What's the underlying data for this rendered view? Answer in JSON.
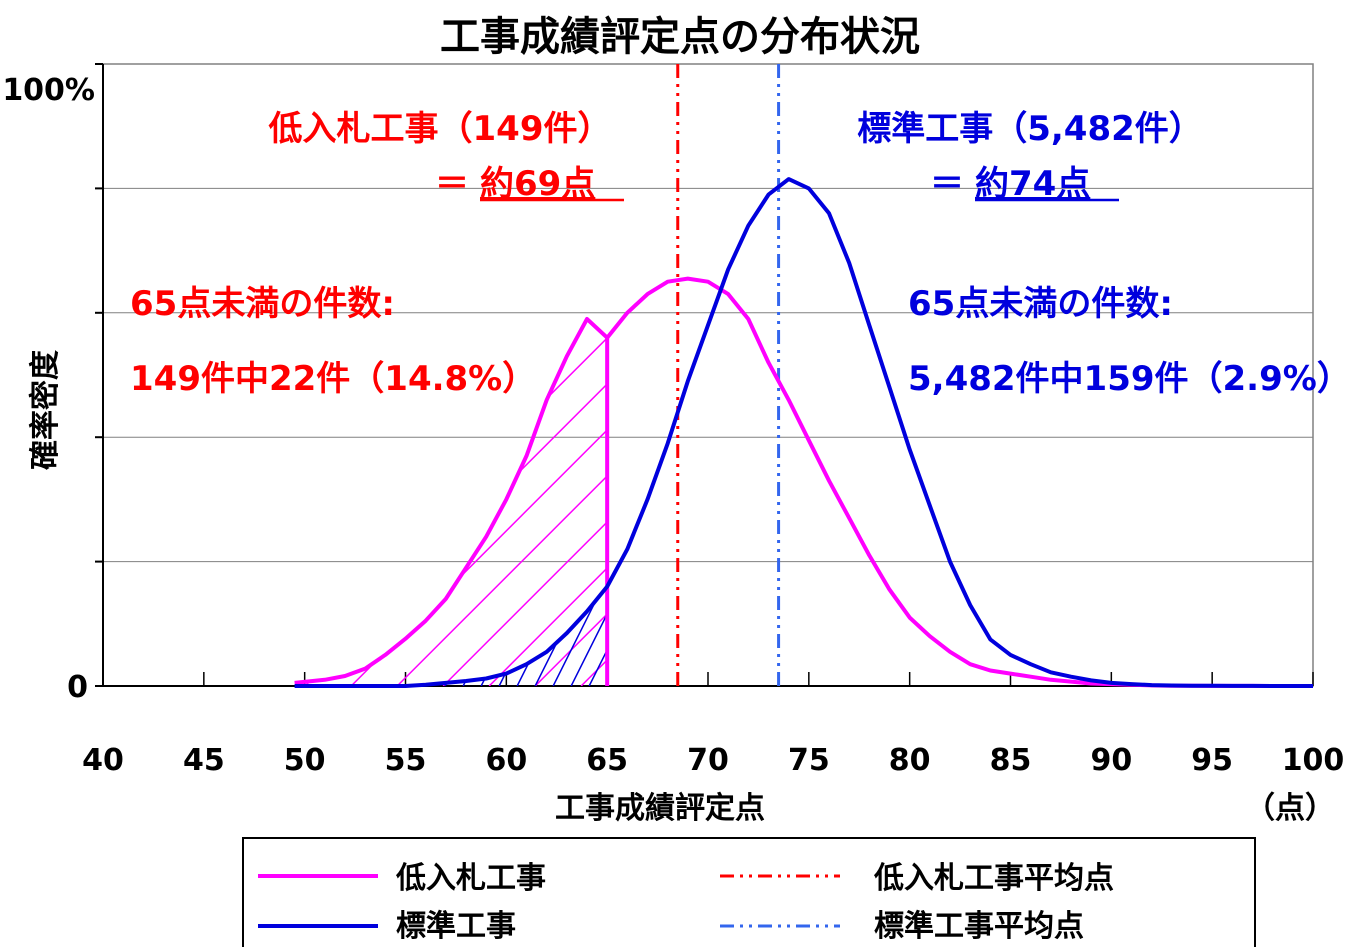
{
  "chart_data": {
    "type": "line",
    "title": "工事成績評定点の分布状況",
    "xlabel": "工事成績評定点",
    "x_unit": "（点）",
    "ylabel": "確率密度",
    "xlim": [
      40,
      100
    ],
    "ylim": [
      0,
      100
    ],
    "x_ticks": [
      "40",
      "45",
      "50",
      "55",
      "60",
      "65",
      "70",
      "75",
      "80",
      "85",
      "90",
      "95",
      "100"
    ],
    "y_tick_labels": {
      "top": "100%",
      "bottom": "0"
    },
    "grid": "horizontal",
    "series": [
      {
        "name": "低入札工事",
        "color": "#ff00ff",
        "x": [
          49.5,
          51,
          52,
          53,
          54,
          55,
          56,
          57,
          58,
          59,
          60,
          61,
          62,
          63,
          64,
          65,
          66,
          67,
          68,
          69,
          70,
          71,
          72,
          73,
          74,
          75,
          76,
          77,
          78,
          79,
          80,
          81,
          82,
          83,
          84,
          85,
          86,
          87,
          88,
          89,
          90,
          91,
          92,
          93,
          94,
          95,
          96,
          97,
          98,
          99,
          100
        ],
        "values": [
          0.5,
          1.0,
          1.6,
          2.8,
          5.0,
          7.6,
          10.5,
          14.0,
          19.0,
          24.0,
          30.0,
          37.0,
          46.0,
          53.0,
          59.0,
          56.0,
          60.0,
          63.0,
          65.0,
          65.5,
          65.0,
          63.0,
          59.0,
          52.0,
          46.0,
          39.5,
          33.0,
          27.0,
          21.0,
          15.5,
          11.0,
          8.0,
          5.5,
          3.5,
          2.5,
          2.0,
          1.5,
          1.0,
          0.7,
          0.4,
          0.3,
          0.2,
          0.1,
          0.05,
          0.03,
          0.02,
          0.01,
          0.01,
          0.0,
          0.0,
          0.0
        ]
      },
      {
        "name": "標準工事",
        "color": "#0000dd",
        "x": [
          49.5,
          51,
          52,
          53,
          54,
          55,
          56,
          57,
          58,
          59,
          60,
          61,
          62,
          63,
          64,
          65,
          66,
          67,
          68,
          69,
          70,
          71,
          72,
          73,
          74,
          75,
          76,
          77,
          78,
          79,
          80,
          81,
          82,
          83,
          84,
          85,
          86,
          87,
          88,
          89,
          90,
          91,
          92,
          93,
          94,
          95,
          96,
          97,
          98,
          99,
          100
        ],
        "values": [
          0.0,
          0.0,
          0.0,
          0.0,
          0.0,
          0.0,
          0.2,
          0.5,
          0.8,
          1.2,
          2.0,
          3.5,
          5.5,
          8.5,
          12.0,
          16.0,
          22.0,
          30.0,
          39.0,
          49.0,
          58.0,
          67.0,
          74.0,
          79.0,
          81.5,
          80.0,
          76.0,
          68.0,
          58.0,
          48.0,
          38.0,
          29.0,
          20.0,
          13.0,
          7.5,
          5.0,
          3.5,
          2.2,
          1.5,
          0.9,
          0.5,
          0.3,
          0.15,
          0.08,
          0.05,
          0.03,
          0.02,
          0.01,
          0.0,
          0.0,
          0.0
        ]
      }
    ],
    "mean_lines": [
      {
        "name": "低入札工事平均点",
        "x": 68.5,
        "color": "#ff0000"
      },
      {
        "name": "標準工事平均点",
        "x": 73.5,
        "color": "#3366ee"
      }
    ],
    "shaded_below": 65,
    "annotations": {
      "low_title": "低入札工事（149件）",
      "low_prefix": "＝",
      "low_mean": "約69点",
      "std_title": "標準工事（5,482件）",
      "std_prefix": "＝",
      "std_mean": "約74点",
      "low_count_label": "65点未満の件数:",
      "low_count_value": "149件中22件（14.8%）",
      "std_count_label": "65点未満の件数:",
      "std_count_value": "5,482件中159件（2.9%）"
    },
    "legend": {
      "placement": "bottom",
      "items": [
        "低入札工事",
        "標準工事",
        "低入札工事平均点",
        "標準工事平均点"
      ]
    }
  }
}
